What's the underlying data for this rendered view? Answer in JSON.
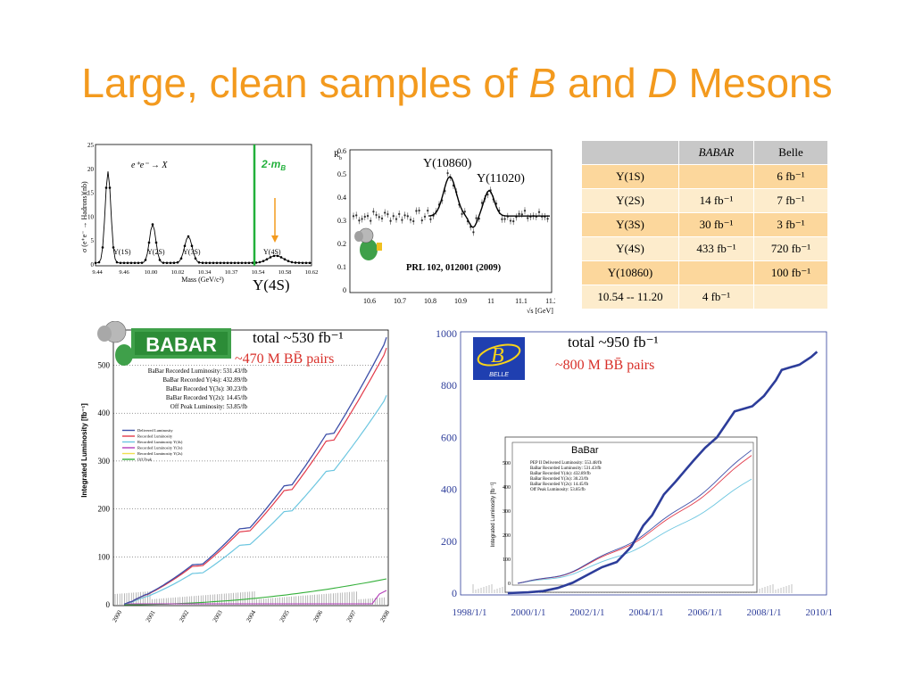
{
  "title": {
    "prefix": "Large, clean samples of ",
    "b": "B",
    "mid": " and ",
    "d": "D",
    "suffix": " Mesons"
  },
  "upsilon_scan": {
    "ylabel": "σ (e⁺e⁻ → Hadrons)(nb)",
    "xlabel": "Mass (GeV/c²)",
    "process": "e⁺e⁻ → X",
    "threshold_label": "2·m",
    "threshold_sub": "B",
    "y_ticks": [
      "25",
      "20",
      "15",
      "10",
      "5",
      "0"
    ],
    "x_ticks": [
      "9.44",
      "9.46",
      "10.00",
      "10.02",
      "10.34",
      "10.37",
      "10.54",
      "10.58",
      "10.62"
    ],
    "peaks": [
      "Υ(1S)",
      "Υ(2S)",
      "Υ(3S)",
      "Υ(4S)"
    ],
    "big_label": "Υ(4S)",
    "colors": {
      "threshold": "#22b03b",
      "arrow": "#f39a1e"
    }
  },
  "rb_scan": {
    "ylabel": "R",
    "ylabel_sub": "b",
    "xlabel": "√s [GeV]",
    "y_ticks": [
      "0.6",
      "0.5",
      "0.4",
      "0.3",
      "0.2",
      "0.1",
      "0"
    ],
    "x_ticks": [
      "10.6",
      "10.7",
      "10.8",
      "10.9",
      "11",
      "11.1",
      "11.2"
    ],
    "peak1": "Υ(10860)",
    "peak2": "Υ(11020)",
    "reference": "PRL 102, 012001 (2009)"
  },
  "table": {
    "headers": [
      "",
      "BABAR",
      "Belle"
    ],
    "rows": [
      [
        "Υ(1S)",
        "",
        "6 fb⁻¹"
      ],
      [
        "Υ(2S)",
        "14 fb⁻¹",
        "7 fb⁻¹"
      ],
      [
        "Υ(3S)",
        "30 fb⁻¹",
        "3 fb⁻¹"
      ],
      [
        "Υ(4S)",
        "433 fb⁻¹",
        "720 fb⁻¹"
      ],
      [
        "Υ(10860)",
        "",
        "100 fb⁻¹"
      ],
      [
        "10.54 -- 11.20",
        "4 fb⁻¹",
        ""
      ]
    ]
  },
  "babar_plot": {
    "logo": "BABAR",
    "total": "total ~530 fb⁻¹",
    "pairs": "~470 M BB̄ pairs",
    "ylabel": "Integrated Luminosity [fb⁻¹]",
    "y_ticks": [
      "500",
      "400",
      "300",
      "200",
      "100",
      "0"
    ],
    "x_ticks": [
      "2000",
      "2001",
      "2002",
      "2003",
      "2004",
      "2005",
      "2006",
      "2007",
      "2008"
    ],
    "stats": [
      "BaBar Recorded Luminosity: 531.43/fb",
      "BaBar Recorded Y(4s): 432.89/fb",
      "BaBar Recorded Y(3s): 30.23/fb",
      "BaBar Recorded Y(2s): 14.45/fb",
      "Off Peak Luminosity: 53.85/fb"
    ],
    "legend": [
      "Delivered Luminosity",
      "Recorded Luminosity",
      "Recorded Luminosity Y(4s)",
      "Recorded Luminosity Y(3s)",
      "Recorded Luminosity Y(2s)",
      "Off Peak"
    ],
    "colors": {
      "delivered": "#3d4fa8",
      "recorded": "#e23a4a",
      "y4s": "#6cc6e0",
      "y3s": "#b23ab8",
      "y2s": "#f0e050",
      "offpeak": "#34b03a",
      "total_text": "#000000",
      "pairs_text": "#d8302a"
    }
  },
  "belle_plot": {
    "logo": "BELLE",
    "total": "total ~950 fb⁻¹",
    "pairs": "~800 M BB̄ pairs",
    "y_ticks": [
      "1000",
      "800",
      "600",
      "400",
      "200",
      "0"
    ],
    "x_ticks": [
      "1998/1/1",
      "2000/1/1",
      "2002/1/1",
      "2004/1/1",
      "2006/1/1",
      "2008/1/1",
      "2010/1/1"
    ],
    "inset_title": "BaBar",
    "inset_ylabel": "Integrated Luminosity [fb⁻¹]",
    "inset_y_ticks": [
      "500",
      "400",
      "300",
      "200",
      "100",
      "0"
    ],
    "inset_stats": [
      "PEP II Delivered Luminosity: 553.48/fb",
      "BaBar Recorded Luminosity: 531.43/fb",
      "BaBar Recorded Y(4s): 432.89/fb",
      "BaBar Recorded Y(3s): 30.23/fb",
      "BaBar Recorded Y(2s): 14.45/fb",
      "Off Peak Luminosity: 53.85/fb"
    ],
    "colors": {
      "axis_labels": "#2d3d9a",
      "curve": "#2d3d9a",
      "logo_bg": "#1f3fb0",
      "logo_fg": "#f7d21a",
      "pairs_text": "#d8302a"
    }
  }
}
